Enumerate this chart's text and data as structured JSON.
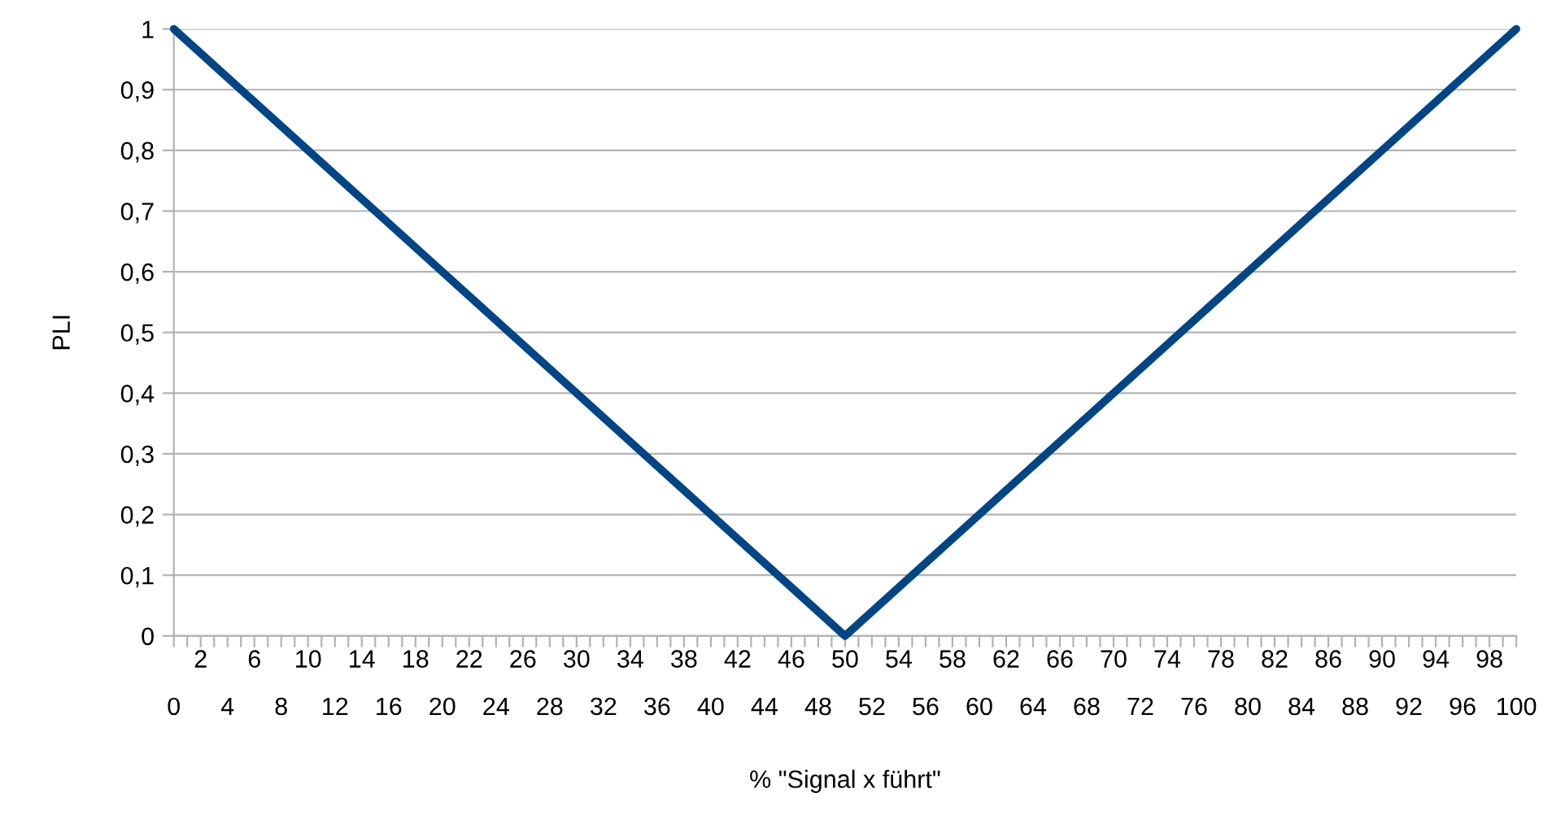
{
  "chart_data": {
    "type": "line",
    "xlabel": "% \"Signal x führt\"",
    "ylabel": "PLI",
    "series": [
      {
        "color": "#004586",
        "x": [
          0,
          50,
          100
        ],
        "values": [
          1,
          0,
          1
        ]
      }
    ],
    "xlim": [
      0,
      100
    ],
    "ylim": [
      0,
      1
    ],
    "xticks": [
      0,
      {
        "value": 1,
        "label": null
      },
      {
        "value": 2,
        "label": null
      },
      {
        "value": 3,
        "label": null
      },
      4,
      {
        "value": 5,
        "label": null
      },
      {
        "value": 6,
        "label": null
      },
      {
        "value": 7,
        "label": null
      },
      8,
      {
        "value": 9,
        "label": null
      },
      {
        "value": 10,
        "label": null
      },
      {
        "value": 11,
        "label": null
      },
      12,
      {
        "value": 13,
        "label": null
      },
      {
        "value": 14,
        "label": null
      },
      {
        "value": 15,
        "label": null
      },
      16,
      {
        "value": 17,
        "label": null
      },
      {
        "value": 18,
        "label": null
      },
      {
        "value": 19,
        "label": null
      },
      20,
      {
        "value": 21,
        "label": null
      },
      {
        "value": 22,
        "label": null
      },
      {
        "value": 23,
        "label": null
      },
      24,
      {
        "value": 25,
        "label": null
      },
      {
        "value": 26,
        "label": null
      },
      {
        "value": 27,
        "label": null
      },
      28,
      {
        "value": 29,
        "label": null
      },
      {
        "value": 30,
        "label": null
      },
      {
        "value": 31,
        "label": null
      },
      32,
      {
        "value": 33,
        "label": null
      },
      {
        "value": 34,
        "label": null
      },
      {
        "value": 35,
        "label": null
      },
      36,
      {
        "value": 37,
        "label": null
      },
      {
        "value": 38,
        "label": null
      },
      {
        "value": 39,
        "label": null
      },
      40,
      {
        "value": 41,
        "label": null
      },
      {
        "value": 42,
        "label": null
      },
      {
        "value": 43,
        "label": null
      },
      44,
      {
        "value": 45,
        "label": null
      },
      {
        "value": 46,
        "label": null
      },
      {
        "value": 47,
        "label": null
      },
      48,
      {
        "value": 49,
        "label": null
      },
      {
        "value": 50,
        "label": null
      },
      {
        "value": 51,
        "label": null
      },
      52,
      {
        "value": 53,
        "label": null
      },
      {
        "value": 54,
        "label": null
      },
      {
        "value": 55,
        "label": null
      },
      56,
      {
        "value": 57,
        "label": null
      },
      {
        "value": 58,
        "label": null
      },
      {
        "value": 59,
        "label": null
      },
      60,
      {
        "value": 61,
        "label": null
      },
      {
        "value": 62,
        "label": null
      },
      {
        "value": 63,
        "label": null
      },
      64,
      {
        "value": 65,
        "label": null
      },
      {
        "value": 66,
        "label": null
      },
      {
        "value": 67,
        "label": null
      },
      68,
      {
        "value": 69,
        "label": null
      },
      {
        "value": 70,
        "label": null
      },
      {
        "value": 71,
        "label": null
      },
      72,
      {
        "value": 73,
        "label": null
      },
      {
        "value": 74,
        "label": null
      },
      {
        "value": 75,
        "label": null
      },
      76,
      {
        "value": 77,
        "label": null
      },
      {
        "value": 78,
        "label": null
      },
      {
        "value": 79,
        "label": null
      },
      80,
      {
        "value": 81,
        "label": null
      },
      {
        "value": 82,
        "label": null
      },
      {
        "value": 83,
        "label": null
      },
      84,
      {
        "value": 85,
        "label": null
      },
      {
        "value": 86,
        "label": null
      },
      {
        "value": 87,
        "label": null
      },
      88,
      {
        "value": 89,
        "label": null
      },
      {
        "value": 90,
        "label": null
      },
      {
        "value": 91,
        "label": null
      },
      92,
      {
        "value": 93,
        "label": null
      },
      {
        "value": 94,
        "label": null
      },
      {
        "value": 95,
        "label": null
      },
      96,
      {
        "value": 97,
        "label": null
      },
      {
        "value": 98,
        "label": null
      },
      {
        "value": 99,
        "label": null
      },
      100
    ],
    "x2lim": [
      0,
      100
    ],
    "x2ticks": [
      2,
      6,
      10,
      14,
      18,
      22,
      26,
      30,
      34,
      38,
      42,
      46,
      50,
      54,
      58,
      62,
      66,
      70,
      74,
      78,
      82,
      86,
      90,
      94,
      98
    ],
    "yticks": [
      0,
      {
        "value": 0.1,
        "label": "0,1"
      },
      {
        "value": 0.2,
        "label": "0,2"
      },
      {
        "value": 0.3,
        "label": "0,3"
      },
      {
        "value": 0.4,
        "label": "0,4"
      },
      {
        "value": 0.5,
        "label": "0,5"
      },
      {
        "value": 0.6,
        "label": "0,6"
      },
      {
        "value": 0.7,
        "label": "0,7"
      },
      {
        "value": 0.8,
        "label": "0,8"
      },
      {
        "value": 0.9,
        "label": "0,9"
      },
      1
    ],
    "grid": "y",
    "line_style": "solid",
    "marker": "none"
  }
}
